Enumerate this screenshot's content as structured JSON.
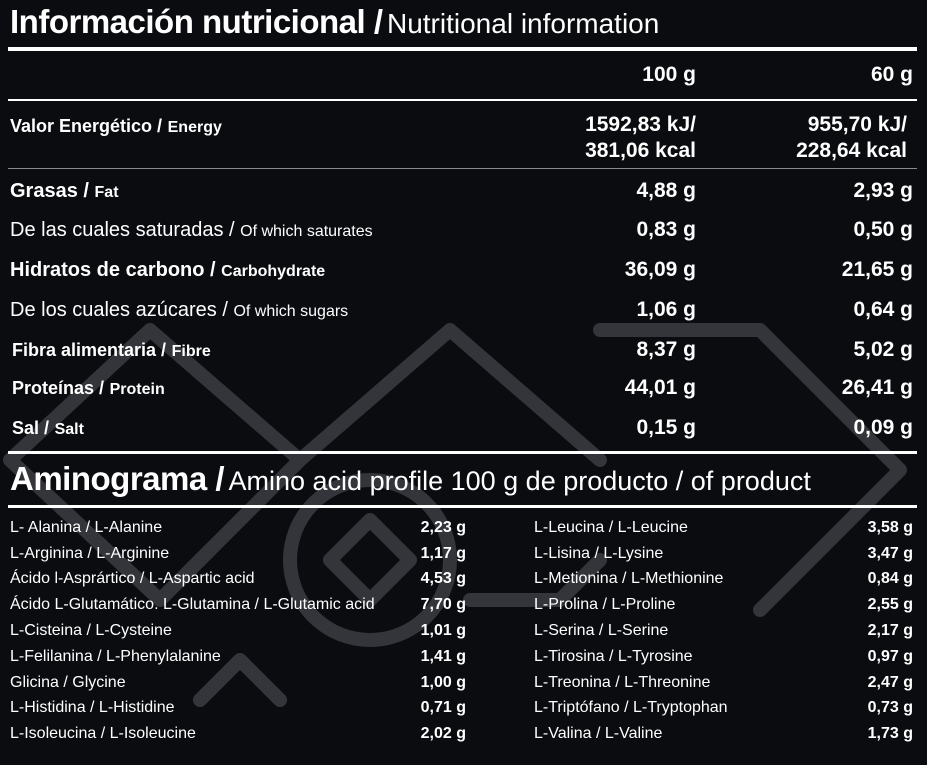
{
  "title": {
    "main": "Información nutricional /",
    "sub": "Nutritional information"
  },
  "columns": {
    "per100": "100 g",
    "per60": "60 g"
  },
  "nutrients": [
    {
      "es": "Valor Energético /",
      "en": "Energy",
      "bold": true,
      "v100": "1592,83 kJ/",
      "v100b": "381,06 kcal",
      "v60": "955,70 kJ/",
      "v60b": "228,64 kcal"
    },
    {
      "es": "Grasas /",
      "en": "Fat",
      "bold": true,
      "v100": "4,88 g",
      "v60": "2,93 g"
    },
    {
      "es": "De las cuales saturadas /",
      "en": "Of which saturates",
      "bold": false,
      "v100": "0,83 g",
      "v60": "0,50 g"
    },
    {
      "es": "Hidratos de carbono /",
      "en": "Carbohydrate",
      "bold": true,
      "v100": "36,09 g",
      "v60": "21,65 g"
    },
    {
      "es": "De los cuales azúcares /",
      "en": "Of which sugars",
      "bold": false,
      "v100": "1,06 g",
      "v60": "0,64 g"
    },
    {
      "es": "Fibra alimentaria /",
      "en": "Fibre",
      "bold": true,
      "v100": "8,37 g",
      "v60": "5,02 g"
    },
    {
      "es": "Proteínas /",
      "en": "Protein",
      "bold": true,
      "v100": "44,01 g",
      "v60": "26,41 g"
    },
    {
      "es": "Sal /",
      "en": "Salt",
      "bold": true,
      "v100": "0,15 g",
      "v60": "0,09 g"
    }
  ],
  "amino": {
    "title_main": "Aminograma /",
    "title_sub": "Amino acid profile 100 g de producto / of product",
    "left": [
      {
        "name": "L- Alanina / L-Alanine",
        "value": "2,23 g"
      },
      {
        "name": "L-Arginina / L-Arginine",
        "value": "1,17 g"
      },
      {
        "name": "Ácido l-Asprártico / L-Aspartic acid",
        "value": "4,53 g"
      },
      {
        "name": "Ácido L-Glutamático. L-Glutamina / L-Glutamic acid",
        "value": "7,70 g"
      },
      {
        "name": "L-Cisteina / L-Cysteine",
        "value": "1,01 g"
      },
      {
        "name": "L-Felilanina / L-Phenylalanine",
        "value": "1,41 g"
      },
      {
        "name": "Glicina / Glycine",
        "value": "1,00 g"
      },
      {
        "name": "L-Histidina / L-Histidine",
        "value": "0,71 g"
      },
      {
        "name": "L-Isoleucina / L-Isoleucine",
        "value": "2,02 g"
      }
    ],
    "right": [
      {
        "name": "L-Leucina / L-Leucine",
        "value": "3,58 g"
      },
      {
        "name": "L-Lisina / L-Lysine",
        "value": "3,47 g"
      },
      {
        "name": "L-Metionina / L-Methionine",
        "value": "0,84 g"
      },
      {
        "name": "L-Prolina / L-Proline",
        "value": "2,55 g"
      },
      {
        "name": "L-Serina / L-Serine",
        "value": "2,17 g"
      },
      {
        "name": "L-Tirosina / L-Tyrosine",
        "value": "0,97 g"
      },
      {
        "name": "L-Treonina / L-Threonine",
        "value": "2,47 g"
      },
      {
        "name": "L-Triptófano / L-Tryptophan",
        "value": "0,73 g"
      },
      {
        "name": "L-Valina / L-Valine",
        "value": "1,73 g"
      }
    ]
  },
  "colors": {
    "background": "#0b0c10",
    "text": "#ffffff",
    "watermark": "#3a3b40"
  }
}
